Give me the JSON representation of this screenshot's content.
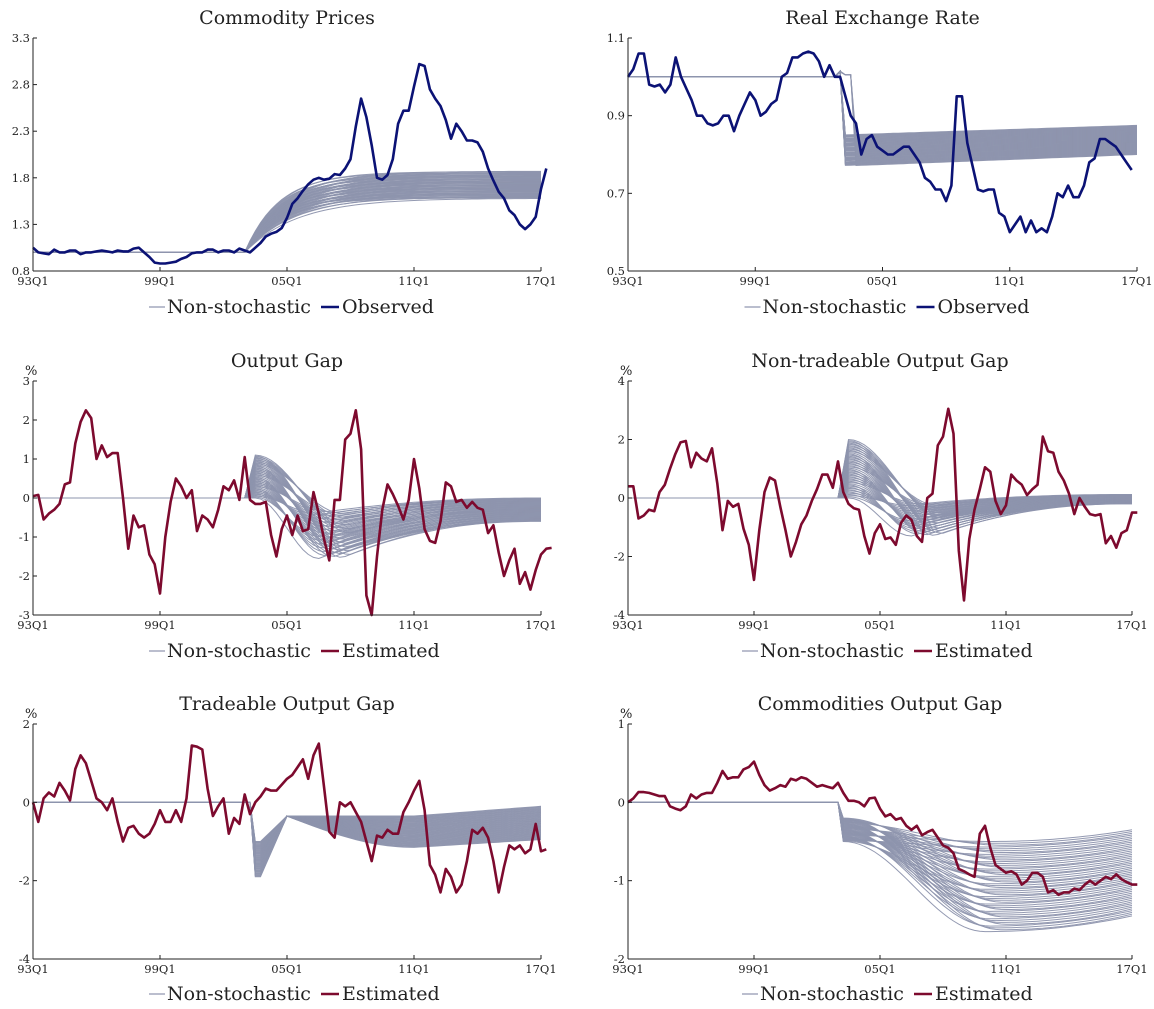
{
  "colors": {
    "nonstochastic": "#8d93ad",
    "observed": "#0b1275",
    "estimated": "#7d0a2e",
    "axis": "#222222"
  },
  "chart_data": [
    {
      "type": "line",
      "title": "Commodity Prices",
      "unit": "",
      "ylim": [
        0.8,
        3.3
      ],
      "yticks": [
        "0.8",
        "1.3",
        "1.8",
        "2.3",
        "2.8",
        "3.3"
      ],
      "xlim": [
        0,
        96
      ],
      "xticks": [
        "93Q1",
        "99Q1",
        "05Q1",
        "11Q1",
        "17Q1"
      ],
      "xtick_pos": [
        0,
        24,
        48,
        72,
        96
      ],
      "legend": [
        "Non-stochastic",
        "Observed"
      ],
      "main_series": {
        "name": "Observed",
        "color_key": "observed",
        "y": [
          1.05,
          1.0,
          0.99,
          0.98,
          1.03,
          1.0,
          1.0,
          1.02,
          1.02,
          0.98,
          1.0,
          1.0,
          1.01,
          1.02,
          1.01,
          1.0,
          1.02,
          1.01,
          1.01,
          1.04,
          1.05,
          1.0,
          0.95,
          0.89,
          0.88,
          0.88,
          0.89,
          0.9,
          0.93,
          0.95,
          0.99,
          1.0,
          1.0,
          1.03,
          1.03,
          1.0,
          1.02,
          1.02,
          1.0,
          1.04,
          1.02,
          1.0,
          1.05,
          1.1,
          1.17,
          1.2,
          1.22,
          1.26,
          1.37,
          1.52,
          1.58,
          1.66,
          1.73,
          1.78,
          1.8,
          1.78,
          1.79,
          1.84,
          1.83,
          1.9,
          2.0,
          2.35,
          2.65,
          2.45,
          2.15,
          1.8,
          1.78,
          1.83,
          2.0,
          2.38,
          2.52,
          2.52,
          2.78,
          3.02,
          3.0,
          2.75,
          2.65,
          2.57,
          2.42,
          2.22,
          2.38,
          2.3,
          2.2,
          2.2,
          2.18,
          2.08,
          1.9,
          1.77,
          1.65,
          1.58,
          1.45,
          1.4,
          1.3,
          1.25,
          1.3,
          1.38,
          1.68,
          1.9
        ]
      },
      "nonstochastic": {
        "name": "Non-stochastic",
        "n_paths": 60,
        "start": 40,
        "start_value": 1.0,
        "pre_value": 1.0,
        "end_range": [
          1.58,
          1.87
        ],
        "shape": "rise",
        "rate_range": [
          0.1,
          0.16
        ]
      }
    },
    {
      "type": "line",
      "title": "Real Exchange Rate",
      "unit": "",
      "ylim": [
        0.5,
        1.1
      ],
      "yticks": [
        "0.5",
        "0.7",
        "0.9",
        "1.1"
      ],
      "xlim": [
        0,
        96
      ],
      "xticks": [
        "93Q1",
        "99Q1",
        "05Q1",
        "11Q1",
        "17Q1"
      ],
      "xtick_pos": [
        0,
        24,
        48,
        72,
        96
      ],
      "legend": [
        "Non-stochastic",
        "Observed"
      ],
      "main_series": {
        "name": "Observed",
        "color_key": "observed",
        "y": [
          1.0,
          1.02,
          1.06,
          1.06,
          0.98,
          0.975,
          0.98,
          0.96,
          0.98,
          1.05,
          1.0,
          0.97,
          0.94,
          0.9,
          0.9,
          0.88,
          0.875,
          0.88,
          0.9,
          0.9,
          0.86,
          0.9,
          0.93,
          0.96,
          0.94,
          0.9,
          0.91,
          0.93,
          0.94,
          1.0,
          1.01,
          1.05,
          1.05,
          1.06,
          1.065,
          1.06,
          1.04,
          1.0,
          1.03,
          1.0,
          1.0,
          0.95,
          0.9,
          0.88,
          0.8,
          0.84,
          0.85,
          0.82,
          0.81,
          0.8,
          0.8,
          0.81,
          0.82,
          0.82,
          0.8,
          0.78,
          0.74,
          0.73,
          0.71,
          0.71,
          0.68,
          0.72,
          0.95,
          0.95,
          0.83,
          0.77,
          0.71,
          0.705,
          0.71,
          0.71,
          0.65,
          0.64,
          0.6,
          0.62,
          0.64,
          0.6,
          0.63,
          0.6,
          0.61,
          0.6,
          0.64,
          0.7,
          0.69,
          0.72,
          0.69,
          0.69,
          0.72,
          0.78,
          0.79,
          0.84,
          0.84,
          0.83,
          0.82,
          0.8,
          0.78,
          0.76
        ]
      },
      "nonstochastic": {
        "name": "Non-stochastic",
        "n_paths": 60,
        "start": 40,
        "start_value": 1.015,
        "pre_value": 1.0,
        "jump_range": [
          0.77,
          0.85
        ],
        "end_range": [
          0.8,
          0.875
        ],
        "shape": "jump"
      }
    },
    {
      "type": "line",
      "title": "Output Gap",
      "unit": "%",
      "ylim": [
        -3,
        3
      ],
      "yticks": [
        "-3",
        "-2",
        "-1",
        "0",
        "1",
        "2",
        "3"
      ],
      "xlim": [
        0,
        96
      ],
      "xticks": [
        "93Q1",
        "99Q1",
        "05Q1",
        "11Q1",
        "17Q1"
      ],
      "xtick_pos": [
        0,
        24,
        48,
        72,
        96
      ],
      "legend": [
        "Non-stochastic",
        "Estimated"
      ],
      "main_series": {
        "name": "Estimated",
        "color_key": "estimated",
        "y": [
          0.05,
          0.08,
          -0.55,
          -0.4,
          -0.3,
          -0.15,
          0.35,
          0.4,
          1.4,
          1.95,
          2.25,
          2.05,
          1.0,
          1.35,
          1.05,
          1.15,
          1.15,
          0.0,
          -1.3,
          -0.45,
          -0.75,
          -0.7,
          -1.45,
          -1.7,
          -2.45,
          -1.0,
          -0.1,
          0.5,
          0.3,
          0.0,
          0.2,
          -0.85,
          -0.45,
          -0.55,
          -0.75,
          -0.3,
          0.3,
          0.2,
          0.45,
          -0.05,
          1.05,
          -0.05,
          -0.15,
          -0.15,
          -0.1,
          -0.95,
          -1.5,
          -0.8,
          -0.45,
          -0.95,
          -0.45,
          -0.85,
          -0.8,
          0.15,
          -0.4,
          -1.05,
          -1.6,
          -0.05,
          -0.05,
          1.5,
          1.65,
          2.25,
          1.25,
          -2.5,
          -3.0,
          -1.5,
          -0.3,
          0.35,
          0.1,
          -0.2,
          -0.55,
          -0.05,
          1.0,
          0.25,
          -0.8,
          -1.1,
          -1.15,
          -0.6,
          0.4,
          0.3,
          -0.1,
          -0.05,
          -0.25,
          -0.1,
          -0.25,
          -0.3,
          -0.9,
          -0.7,
          -1.4,
          -2.0,
          -1.6,
          -1.3,
          -2.2,
          -1.9,
          -2.35,
          -1.85,
          -1.45,
          -1.3,
          -1.28
        ]
      },
      "nonstochastic": {
        "name": "Non-stochastic",
        "n_paths": 50,
        "start": 40,
        "start_value": 0.0,
        "pre_value": 0.0,
        "peak_range": [
          0.0,
          1.1
        ],
        "trough_range": [
          -1.55,
          -0.35
        ],
        "end_range": [
          -0.6,
          0.0
        ],
        "shape": "overshoot"
      }
    },
    {
      "type": "line",
      "title": "Non-tradeable Output Gap",
      "unit": "%",
      "ylim": [
        -4,
        4
      ],
      "yticks": [
        "-4",
        "-2",
        "0",
        "2",
        "4"
      ],
      "xlim": [
        0,
        96
      ],
      "xticks": [
        "93Q1",
        "99Q1",
        "05Q1",
        "11Q1",
        "17Q1"
      ],
      "xtick_pos": [
        0,
        24,
        48,
        72,
        96
      ],
      "legend": [
        "Non-stochastic",
        "Estimated"
      ],
      "main_series": {
        "name": "Estimated",
        "color_key": "estimated",
        "y": [
          0.4,
          0.4,
          -0.7,
          -0.6,
          -0.4,
          -0.45,
          0.2,
          0.45,
          1.0,
          1.5,
          1.9,
          1.95,
          1.05,
          1.55,
          1.35,
          1.25,
          1.7,
          0.5,
          -1.1,
          -0.1,
          -0.3,
          -0.2,
          -1.05,
          -1.6,
          -2.8,
          -1.1,
          0.2,
          0.7,
          0.6,
          -0.3,
          -1.1,
          -2.0,
          -1.5,
          -0.9,
          -0.6,
          -0.1,
          0.3,
          0.8,
          0.8,
          0.35,
          1.25,
          0.2,
          -0.2,
          -0.35,
          -0.4,
          -1.3,
          -1.9,
          -1.2,
          -0.9,
          -1.4,
          -1.35,
          -1.6,
          -0.85,
          -0.6,
          -0.75,
          -1.3,
          -1.5,
          0.0,
          0.15,
          1.8,
          2.1,
          3.05,
          2.2,
          -1.8,
          -3.5,
          -1.4,
          -0.4,
          0.3,
          1.05,
          0.9,
          -0.1,
          -0.55,
          -0.25,
          0.8,
          0.6,
          0.45,
          0.1,
          0.3,
          0.45,
          2.1,
          1.6,
          1.55,
          0.9,
          0.6,
          0.15,
          -0.55,
          0.0,
          -0.3,
          -0.55,
          -0.6,
          -0.55,
          -1.55,
          -1.3,
          -1.7,
          -1.2,
          -1.1,
          -0.5,
          -0.5
        ]
      },
      "nonstochastic": {
        "name": "Non-stochastic",
        "n_paths": 50,
        "start": 40,
        "start_value": 0.0,
        "pre_value": 0.0,
        "peak_range": [
          0.0,
          2.0
        ],
        "trough_range": [
          -1.3,
          -0.2
        ],
        "end_range": [
          -0.2,
          0.12
        ],
        "shape": "overshoot"
      }
    },
    {
      "type": "line",
      "title": "Tradeable Output Gap",
      "unit": "%",
      "ylim": [
        -4,
        2
      ],
      "yticks": [
        "-4",
        "-2",
        "0",
        "2"
      ],
      "xlim": [
        0,
        96
      ],
      "xticks": [
        "93Q1",
        "99Q1",
        "05Q1",
        "11Q1",
        "17Q1"
      ],
      "xtick_pos": [
        0,
        24,
        48,
        72,
        96
      ],
      "legend": [
        "Non-stochastic",
        "Estimated"
      ],
      "main_series": {
        "name": "Estimated",
        "color_key": "estimated",
        "y": [
          0.0,
          -0.5,
          0.1,
          0.25,
          0.15,
          0.5,
          0.3,
          0.05,
          0.85,
          1.2,
          1.0,
          0.55,
          0.1,
          0.0,
          -0.2,
          0.1,
          -0.5,
          -1.0,
          -0.65,
          -0.6,
          -0.8,
          -0.9,
          -0.8,
          -0.55,
          -0.2,
          -0.5,
          -0.5,
          -0.2,
          -0.5,
          0.1,
          1.45,
          1.42,
          1.35,
          0.35,
          -0.35,
          -0.1,
          0.1,
          -0.8,
          -0.4,
          -0.55,
          0.2,
          -0.3,
          0.0,
          0.15,
          0.35,
          0.3,
          0.3,
          0.45,
          0.6,
          0.7,
          0.9,
          1.1,
          0.6,
          1.2,
          1.5,
          0.4,
          -0.75,
          -0.9,
          0.0,
          -0.1,
          0.0,
          -0.25,
          -0.5,
          -1.0,
          -1.5,
          -0.85,
          -0.9,
          -0.7,
          -0.8,
          -0.8,
          -0.25,
          0.0,
          0.3,
          0.55,
          -0.2,
          -1.6,
          -1.85,
          -2.3,
          -1.7,
          -1.9,
          -2.3,
          -2.1,
          -1.5,
          -0.7,
          -0.8,
          -0.65,
          -0.9,
          -1.5,
          -2.3,
          -1.65,
          -1.1,
          -1.2,
          -1.1,
          -1.3,
          -1.2,
          -0.55,
          -1.25,
          -1.2
        ]
      },
      "nonstochastic": {
        "name": "Non-stochastic",
        "n_paths": 50,
        "start": 41,
        "start_value": 0.0,
        "pre_value": 0.0,
        "dip_range": [
          -1.9,
          -1.0
        ],
        "trough_range": [
          -1.15,
          -0.35
        ],
        "end_range": [
          -0.95,
          -0.1
        ],
        "shape": "dip"
      }
    },
    {
      "type": "line",
      "title": "Commodities Output Gap",
      "unit": "%",
      "ylim": [
        -2,
        1
      ],
      "yticks": [
        "-2",
        "-1",
        "0",
        "1"
      ],
      "xlim": [
        0,
        96
      ],
      "xticks": [
        "93Q1",
        "99Q1",
        "05Q1",
        "11Q1",
        "17Q1"
      ],
      "xtick_pos": [
        0,
        24,
        48,
        72,
        96
      ],
      "legend": [
        "Non-stochastic",
        "Estimated"
      ],
      "main_series": {
        "name": "Estimated",
        "color_key": "estimated",
        "y": [
          0.0,
          0.05,
          0.13,
          0.13,
          0.12,
          0.1,
          0.08,
          0.08,
          -0.05,
          -0.08,
          -0.1,
          -0.05,
          0.1,
          0.05,
          0.1,
          0.12,
          0.12,
          0.25,
          0.4,
          0.3,
          0.32,
          0.32,
          0.42,
          0.45,
          0.52,
          0.35,
          0.22,
          0.15,
          0.18,
          0.22,
          0.2,
          0.3,
          0.28,
          0.32,
          0.3,
          0.25,
          0.2,
          0.22,
          0.2,
          0.18,
          0.25,
          0.12,
          0.02,
          0.02,
          0.0,
          -0.05,
          0.05,
          0.06,
          -0.08,
          -0.18,
          -0.15,
          -0.22,
          -0.2,
          -0.3,
          -0.35,
          -0.3,
          -0.42,
          -0.38,
          -0.35,
          -0.45,
          -0.55,
          -0.58,
          -0.65,
          -0.85,
          -0.88,
          -0.92,
          -0.95,
          -0.4,
          -0.3,
          -0.58,
          -0.8,
          -0.85,
          -0.9,
          -0.88,
          -0.92,
          -1.05,
          -1.0,
          -0.9,
          -0.9,
          -0.95,
          -1.15,
          -1.12,
          -1.18,
          -1.15,
          -1.15,
          -1.1,
          -1.12,
          -1.05,
          -1.0,
          -1.05,
          -1.0,
          -0.95,
          -0.98,
          -0.92,
          -0.98,
          -1.02,
          -1.05,
          -1.05
        ]
      },
      "nonstochastic": {
        "name": "Non-stochastic",
        "n_paths": 50,
        "start": 40,
        "start_value": 0.0,
        "pre_value": 0.0,
        "first_range": [
          -0.5,
          -0.2
        ],
        "trough_range": [
          -1.65,
          -0.5
        ],
        "end_range": [
          -1.45,
          -0.35
        ],
        "shape": "decline"
      }
    }
  ]
}
